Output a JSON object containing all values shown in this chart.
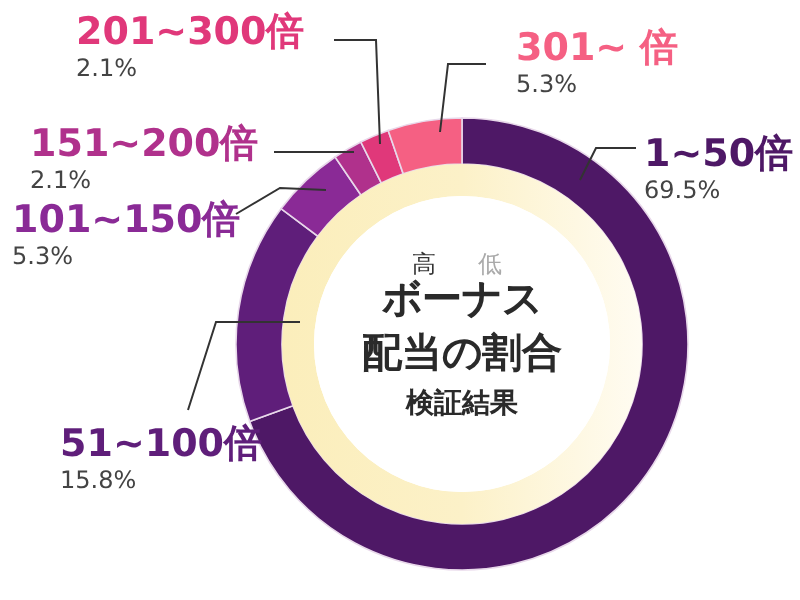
{
  "chart_data": {
    "type": "donut",
    "title": "ボーナス配当の割合",
    "subtitle": "検証結果",
    "categories": [
      "1~50倍",
      "51~100倍",
      "101~150倍",
      "151~200倍",
      "201~300倍",
      "301~ 倍"
    ],
    "values": [
      69.5,
      15.8,
      5.3,
      2.1,
      2.1,
      5.3
    ],
    "colors": [
      "#4e1866",
      "#5f1e7a",
      "#8a2a96",
      "#b0318c",
      "#e0387a",
      "#f56083"
    ],
    "value_labels": [
      "69.5%",
      "15.8%",
      "5.3%",
      "2.1%",
      "2.1%",
      "5.3%"
    ],
    "annotations": [
      "高",
      "低"
    ]
  }
}
